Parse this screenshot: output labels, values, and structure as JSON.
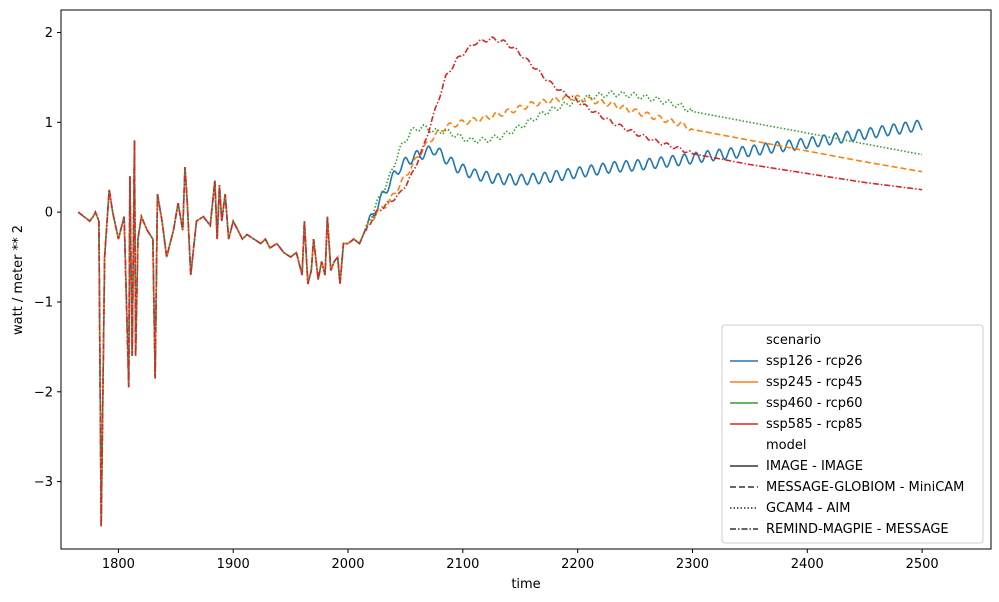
{
  "chart_data": {
    "type": "line",
    "xlabel": "time",
    "ylabel": "watt / meter ** 2",
    "xlim": [
      1750,
      2560
    ],
    "ylim": [
      -3.75,
      2.25
    ],
    "x_ticks": [
      1800,
      1900,
      2000,
      2100,
      2200,
      2300,
      2400,
      2500
    ],
    "y_ticks": [
      -3,
      -2,
      -1,
      0,
      1,
      2
    ],
    "x_tick_labels": [
      "1800",
      "1900",
      "2000",
      "2100",
      "2200",
      "2300",
      "2400",
      "2500"
    ],
    "y_tick_labels": [
      "−3",
      "−2",
      "−1",
      "0",
      "1",
      "2"
    ],
    "grid": false,
    "legend_position": "lower-right",
    "legend": {
      "scenario_title": "scenario",
      "model_title": "model",
      "scenarios": [
        {
          "name": "ssp126 - rcp26",
          "color": "#1f77b4"
        },
        {
          "name": "ssp245 - rcp45",
          "color": "#ff7f0e"
        },
        {
          "name": "ssp460 - rcp60",
          "color": "#2ca02c"
        },
        {
          "name": "ssp585 - rcp85",
          "color": "#d62728"
        }
      ],
      "models": [
        {
          "name": "IMAGE - IMAGE",
          "dash": "solid"
        },
        {
          "name": "MESSAGE-GLOBIOM - MiniCAM",
          "dash": "dashed"
        },
        {
          "name": "GCAM4 - AIM",
          "dash": "dotted"
        },
        {
          "name": "REMIND-MAGPIE - MESSAGE",
          "dash": "dashdot"
        }
      ]
    },
    "historical": {
      "x": [
        1765,
        1770,
        1775,
        1778,
        1780,
        1783,
        1785,
        1788,
        1792,
        1795,
        1800,
        1805,
        1809,
        1810,
        1812,
        1814,
        1815,
        1817,
        1820,
        1825,
        1830,
        1832,
        1834,
        1838,
        1842,
        1848,
        1852,
        1856,
        1858,
        1860,
        1863,
        1868,
        1874,
        1880,
        1884,
        1886,
        1888,
        1890,
        1893,
        1896,
        1900,
        1904,
        1908,
        1912,
        1918,
        1924,
        1928,
        1932,
        1938,
        1944,
        1950,
        1955,
        1960,
        1962,
        1965,
        1968,
        1970,
        1974,
        1977,
        1980,
        1982,
        1985,
        1988,
        1991,
        1993,
        1996,
        2000,
        2005,
        2010,
        2015
      ],
      "y": [
        0.0,
        -0.05,
        -0.1,
        -0.05,
        0.0,
        -0.1,
        -3.5,
        -0.5,
        0.25,
        0.0,
        -0.3,
        -0.05,
        -1.95,
        0.4,
        -1.6,
        0.8,
        -1.6,
        -0.3,
        -0.05,
        -0.2,
        -0.3,
        -1.85,
        0.2,
        -0.1,
        -0.5,
        -0.2,
        0.1,
        -0.2,
        0.5,
        0.1,
        -0.7,
        -0.1,
        -0.05,
        -0.15,
        0.35,
        -0.3,
        0.3,
        -0.1,
        0.2,
        -0.3,
        -0.1,
        -0.2,
        -0.3,
        -0.25,
        -0.3,
        -0.35,
        -0.3,
        -0.4,
        -0.35,
        -0.45,
        -0.5,
        -0.45,
        -0.7,
        -0.1,
        -0.8,
        -0.65,
        -0.3,
        -0.75,
        -0.55,
        -0.7,
        -0.05,
        -0.65,
        -0.55,
        -0.5,
        -0.8,
        -0.35,
        -0.35,
        -0.3,
        -0.35,
        -0.2
      ]
    },
    "series": [
      {
        "name": "ssp126 - rcp26",
        "model": "IMAGE - IMAGE",
        "x": [
          2015,
          2025,
          2035,
          2045,
          2055,
          2065,
          2075,
          2085,
          2095,
          2110,
          2130,
          2150,
          2170,
          2190,
          2210,
          2230,
          2250,
          2270,
          2290,
          2310,
          2330,
          2350,
          2370,
          2390,
          2410,
          2430,
          2450,
          2470,
          2490,
          2500
        ],
        "y": [
          -0.2,
          0.05,
          0.3,
          0.5,
          0.6,
          0.65,
          0.7,
          0.6,
          0.5,
          0.42,
          0.37,
          0.36,
          0.38,
          0.42,
          0.46,
          0.5,
          0.52,
          0.55,
          0.58,
          0.62,
          0.65,
          0.68,
          0.72,
          0.75,
          0.79,
          0.83,
          0.87,
          0.91,
          0.95,
          0.97
        ],
        "wiggle": 0.06
      },
      {
        "name": "ssp245 - rcp45",
        "model": "MESSAGE-GLOBIOM - MiniCAM",
        "x": [
          2015,
          2025,
          2035,
          2045,
          2055,
          2065,
          2075,
          2085,
          2100,
          2120,
          2140,
          2160,
          2180,
          2195,
          2210,
          2230,
          2250,
          2270,
          2290,
          2300,
          2350,
          2400,
          2450,
          2500
        ],
        "y": [
          -0.2,
          0.0,
          0.1,
          0.3,
          0.5,
          0.7,
          0.85,
          0.95,
          1.0,
          1.05,
          1.12,
          1.2,
          1.25,
          1.28,
          1.25,
          1.2,
          1.12,
          1.05,
          0.98,
          0.92,
          0.8,
          0.68,
          0.56,
          0.45
        ],
        "wiggle": 0.03
      },
      {
        "name": "ssp460 - rcp60",
        "model": "GCAM4 - AIM",
        "x": [
          2015,
          2025,
          2035,
          2045,
          2055,
          2065,
          2075,
          2085,
          2095,
          2105,
          2120,
          2135,
          2150,
          2170,
          2190,
          2210,
          2230,
          2250,
          2270,
          2290,
          2300,
          2350,
          2400,
          2450,
          2500
        ],
        "y": [
          -0.2,
          0.1,
          0.35,
          0.7,
          0.9,
          0.95,
          0.9,
          0.9,
          0.85,
          0.8,
          0.8,
          0.85,
          0.95,
          1.1,
          1.2,
          1.28,
          1.32,
          1.3,
          1.25,
          1.18,
          1.12,
          1.0,
          0.88,
          0.76,
          0.64
        ],
        "wiggle": 0.03
      },
      {
        "name": "ssp585 - rcp85",
        "model": "REMIND-MAGPIE - MESSAGE",
        "x": [
          2015,
          2025,
          2035,
          2045,
          2055,
          2065,
          2075,
          2085,
          2095,
          2110,
          2125,
          2135,
          2145,
          2155,
          2165,
          2175,
          2185,
          2195,
          2210,
          2230,
          2250,
          2270,
          2290,
          2300,
          2350,
          2400,
          2450,
          2500
        ],
        "y": [
          -0.2,
          0.0,
          0.1,
          0.2,
          0.4,
          0.7,
          1.1,
          1.5,
          1.7,
          1.88,
          1.93,
          1.9,
          1.82,
          1.7,
          1.58,
          1.45,
          1.35,
          1.28,
          1.15,
          1.0,
          0.88,
          0.78,
          0.7,
          0.65,
          0.53,
          0.43,
          0.33,
          0.25
        ],
        "wiggle": 0.02
      }
    ]
  }
}
